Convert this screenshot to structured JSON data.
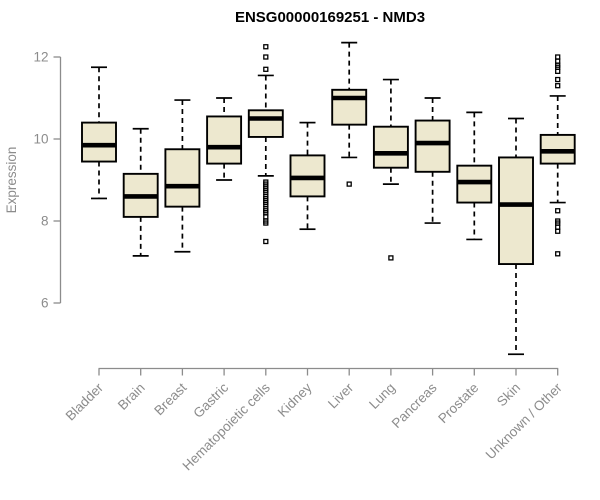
{
  "chart_data": {
    "type": "box",
    "title": "ENSG00000169251 - NMD3",
    "ylabel": "Expression",
    "xlabel": "",
    "yticks": [
      6,
      8,
      10,
      12
    ],
    "ylim": [
      4.5,
      12.5
    ],
    "grid": false,
    "legend": "none",
    "colors": {
      "box_fill": "#ede8cf",
      "box_stroke": "#000000",
      "median": "#000000",
      "axis": "#8c8c8c",
      "title": "#000000",
      "background": "#ffffff"
    },
    "categories": [
      "Bladder",
      "Brain",
      "Breast",
      "Gastric",
      "Hematopoietic cells",
      "Kidney",
      "Liver",
      "Lung",
      "Pancreas",
      "Prostate",
      "Skin",
      "Unknown / Other"
    ],
    "series": [
      {
        "category": "Bladder",
        "whisker_low": 8.55,
        "q1": 9.45,
        "median": 9.85,
        "q3": 10.4,
        "whisker_high": 11.75,
        "outliers": []
      },
      {
        "category": "Brain",
        "whisker_low": 7.15,
        "q1": 8.1,
        "median": 8.6,
        "q3": 9.15,
        "whisker_high": 10.25,
        "outliers": []
      },
      {
        "category": "Breast",
        "whisker_low": 7.25,
        "q1": 8.35,
        "median": 8.85,
        "q3": 9.75,
        "whisker_high": 10.95,
        "outliers": []
      },
      {
        "category": "Gastric",
        "whisker_low": 9.0,
        "q1": 9.4,
        "median": 9.8,
        "q3": 10.55,
        "whisker_high": 11.0,
        "outliers": []
      },
      {
        "category": "Hematopoietic cells",
        "whisker_low": 9.1,
        "q1": 10.05,
        "median": 10.5,
        "q3": 10.7,
        "whisker_high": 11.55,
        "outliers": [
          12.25,
          12.0,
          11.7,
          8.95,
          8.9,
          8.85,
          8.8,
          8.75,
          8.7,
          8.6,
          8.55,
          8.5,
          8.45,
          8.4,
          8.3,
          8.25,
          8.2,
          8.1,
          8.0,
          7.95,
          7.5
        ]
      },
      {
        "category": "Kidney",
        "whisker_low": 7.8,
        "q1": 8.6,
        "median": 9.05,
        "q3": 9.6,
        "whisker_high": 10.4,
        "outliers": []
      },
      {
        "category": "Liver",
        "whisker_low": 9.55,
        "q1": 10.35,
        "median": 11.0,
        "q3": 11.2,
        "whisker_high": 12.35,
        "outliers": [
          8.9
        ]
      },
      {
        "category": "Lung",
        "whisker_low": 8.9,
        "q1": 9.3,
        "median": 9.65,
        "q3": 10.3,
        "whisker_high": 11.45,
        "outliers": [
          7.1
        ]
      },
      {
        "category": "Pancreas",
        "whisker_low": 7.95,
        "q1": 9.2,
        "median": 9.9,
        "q3": 10.45,
        "whisker_high": 11.0,
        "outliers": []
      },
      {
        "category": "Prostate",
        "whisker_low": 7.55,
        "q1": 8.45,
        "median": 8.95,
        "q3": 9.35,
        "whisker_high": 10.65,
        "outliers": []
      },
      {
        "category": "Skin",
        "whisker_low": 4.75,
        "q1": 6.95,
        "median": 8.4,
        "q3": 9.55,
        "whisker_high": 10.5,
        "outliers": []
      },
      {
        "category": "Unknown / Other",
        "whisker_low": 8.45,
        "q1": 9.4,
        "median": 9.7,
        "q3": 10.1,
        "whisker_high": 11.05,
        "outliers": [
          12.0,
          11.9,
          11.8,
          11.75,
          11.65,
          11.45,
          11.3,
          8.25,
          8.0,
          7.95,
          7.85,
          7.75,
          7.2
        ]
      }
    ]
  }
}
